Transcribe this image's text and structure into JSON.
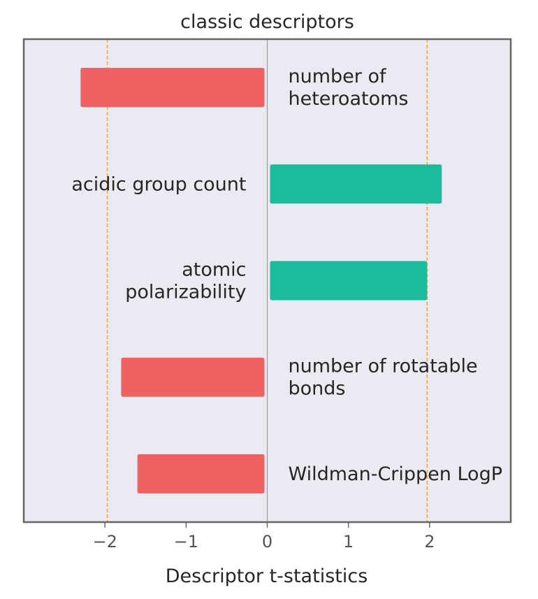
{
  "chart_data": {
    "type": "bar",
    "orientation": "horizontal",
    "title": "classic descriptors",
    "xlabel": "Descriptor t-statistics",
    "ylabel": "",
    "xlim": [
      -3.0,
      3.0
    ],
    "xticks": [
      -2,
      -1,
      0,
      1,
      2
    ],
    "xtick_labels": [
      "−2",
      "−1",
      "0",
      "1",
      "2"
    ],
    "threshold_lines": [
      -1.97,
      1.97
    ],
    "grid": false,
    "categories": [
      "number of\nheteroatoms",
      "acidic group count",
      "atomic\npolarizability",
      "number of rotatable\nbonds",
      "Wildman-Crippen LogP"
    ],
    "values": [
      -2.3,
      2.15,
      1.97,
      -1.8,
      -1.6
    ],
    "colors": {
      "positive": "#1abc9c",
      "negative": "#f06262",
      "threshold": "#f5a540",
      "background": "#eaeaf2",
      "frame": "#666666",
      "zero_line": "#999999"
    }
  }
}
